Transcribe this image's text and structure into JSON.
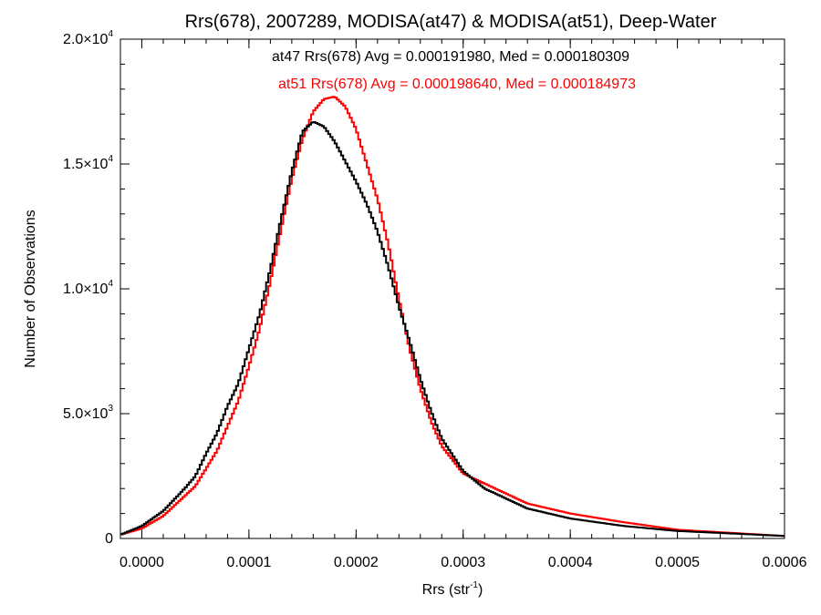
{
  "chart_data": {
    "type": "line",
    "style": "step-histogram",
    "title": "Rrs(678), 2007289, MODISA(at47) & MODISA(at51), Deep-Water",
    "xlabel": {
      "base": "Rrs (str",
      "sup": "-1",
      "close": ")"
    },
    "ylabel": "Number of Observations",
    "xlim": [
      -2e-05,
      0.0006
    ],
    "ylim": [
      0,
      20000
    ],
    "x_ticks": [
      {
        "value": 0.0,
        "label": "0.0000"
      },
      {
        "value": 0.0001,
        "label": "0.0001"
      },
      {
        "value": 0.0002,
        "label": "0.0002"
      },
      {
        "value": 0.0003,
        "label": "0.0003"
      },
      {
        "value": 0.0004,
        "label": "0.0004"
      },
      {
        "value": 0.0005,
        "label": "0.0005"
      },
      {
        "value": 0.0006,
        "label": "0.0006"
      }
    ],
    "y_ticks": [
      {
        "value": 0,
        "mant": "0",
        "exp": ""
      },
      {
        "value": 5000,
        "mant": "5.0×10",
        "exp": "3"
      },
      {
        "value": 10000,
        "mant": "1.0×10",
        "exp": "4"
      },
      {
        "value": 15000,
        "mant": "1.5×10",
        "exp": "4"
      },
      {
        "value": 20000,
        "mant": "2.0×10",
        "exp": "4"
      }
    ],
    "grid": false,
    "bin_width": 2e-06,
    "series": [
      {
        "name": "at47",
        "color": "#000000",
        "annotation": "at47 Rrs(678) Avg = 0.000191980, Med = 0.000180309",
        "points": [
          [
            -2e-05,
            150
          ],
          [
            0,
            500
          ],
          [
            2e-05,
            1100
          ],
          [
            4e-05,
            2000
          ],
          [
            5e-05,
            2500
          ],
          [
            6e-05,
            3400
          ],
          [
            7e-05,
            4200
          ],
          [
            8e-05,
            5300
          ],
          [
            9e-05,
            6200
          ],
          [
            0.0001,
            7600
          ],
          [
            0.00011,
            9000
          ],
          [
            0.00012,
            10800
          ],
          [
            0.00013,
            12800
          ],
          [
            0.00014,
            14700
          ],
          [
            0.00015,
            16300
          ],
          [
            0.00016,
            16700
          ],
          [
            0.00017,
            16500
          ],
          [
            0.00018,
            15900
          ],
          [
            0.00019,
            15100
          ],
          [
            0.0002,
            14300
          ],
          [
            0.00021,
            13400
          ],
          [
            0.00022,
            12300
          ],
          [
            0.00023,
            10900
          ],
          [
            0.00024,
            9300
          ],
          [
            0.00025,
            7900
          ],
          [
            0.00026,
            6400
          ],
          [
            0.00027,
            5100
          ],
          [
            0.00028,
            4000
          ],
          [
            0.0003,
            2700
          ],
          [
            0.00032,
            2000
          ],
          [
            0.00034,
            1600
          ],
          [
            0.00036,
            1200
          ],
          [
            0.0004,
            800
          ],
          [
            0.00045,
            500
          ],
          [
            0.0005,
            300
          ],
          [
            0.0006,
            100
          ]
        ]
      },
      {
        "name": "at51",
        "color": "#ff0000",
        "annotation": "at51 Rrs(678) Avg = 0.000198640, Med = 0.000184973",
        "points": [
          [
            -2e-05,
            150
          ],
          [
            0,
            400
          ],
          [
            2e-05,
            900
          ],
          [
            4e-05,
            1700
          ],
          [
            5e-05,
            2100
          ],
          [
            6e-05,
            2800
          ],
          [
            7e-05,
            3500
          ],
          [
            8e-05,
            4500
          ],
          [
            9e-05,
            5500
          ],
          [
            0.0001,
            6900
          ],
          [
            0.00011,
            8400
          ],
          [
            0.00012,
            10300
          ],
          [
            0.00013,
            12400
          ],
          [
            0.00014,
            14400
          ],
          [
            0.00015,
            16000
          ],
          [
            0.00016,
            17100
          ],
          [
            0.00017,
            17600
          ],
          [
            0.00018,
            17700
          ],
          [
            0.00019,
            17300
          ],
          [
            0.0002,
            16400
          ],
          [
            0.00021,
            15000
          ],
          [
            0.00022,
            13600
          ],
          [
            0.00023,
            11800
          ],
          [
            0.00024,
            9600
          ],
          [
            0.00025,
            7600
          ],
          [
            0.00026,
            6000
          ],
          [
            0.00027,
            4700
          ],
          [
            0.00028,
            3700
          ],
          [
            0.0003,
            2600
          ],
          [
            0.00032,
            2200
          ],
          [
            0.00034,
            1800
          ],
          [
            0.00036,
            1400
          ],
          [
            0.0004,
            1000
          ],
          [
            0.00045,
            650
          ],
          [
            0.0005,
            350
          ],
          [
            0.0006,
            100
          ]
        ]
      }
    ]
  }
}
